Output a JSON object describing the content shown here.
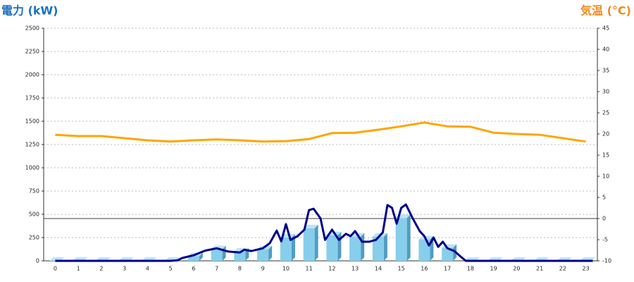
{
  "chart_data": {
    "type": "bar",
    "title": "電力 (kW)",
    "y2_title": "気温 (°C)",
    "categories": [
      "0",
      "1",
      "2",
      "3",
      "4",
      "5",
      "6",
      "7",
      "8",
      "9",
      "10",
      "11",
      "12",
      "13",
      "14",
      "15",
      "16",
      "17",
      "18",
      "19",
      "20",
      "21",
      "22",
      "23"
    ],
    "ylim": [
      0,
      2500
    ],
    "yticks": [
      0,
      250,
      500,
      750,
      1000,
      1250,
      1500,
      1750,
      2000,
      2250,
      2500
    ],
    "y2lim": [
      -10,
      45
    ],
    "y2ticks": [
      -10,
      -5,
      0,
      5,
      10,
      15,
      20,
      25,
      30,
      35,
      40,
      45
    ],
    "grid": true,
    "series": [
      {
        "type": "bar",
        "color": "#87ceeb",
        "values": [
          0,
          0,
          0,
          0,
          0,
          0,
          50,
          125,
          100,
          125,
          250,
          350,
          275,
          260,
          260,
          460,
          230,
          140,
          0,
          0,
          0,
          0,
          0,
          0
        ]
      },
      {
        "type": "line",
        "color": "#00008b",
        "x": [
          0,
          5,
          5.3,
          5.5,
          6,
          6.3,
          6.5,
          7,
          7.5,
          8,
          8.2,
          8.5,
          9,
          9.3,
          9.6,
          9.8,
          10,
          10.2,
          10.5,
          10.8,
          11,
          11.2,
          11.5,
          11.7,
          12,
          12.3,
          12.6,
          12.8,
          13,
          13.3,
          13.6,
          13.9,
          14.2,
          14.4,
          14.6,
          14.8,
          15,
          15.2,
          15.5,
          15.8,
          16,
          16.2,
          16.4,
          16.6,
          16.8,
          17,
          17.3,
          17.6,
          17.8,
          23.3
        ],
        "values": [
          0,
          0,
          5,
          30,
          60,
          90,
          110,
          135,
          100,
          90,
          120,
          105,
          135,
          190,
          325,
          210,
          395,
          225,
          265,
          335,
          545,
          560,
          455,
          225,
          335,
          225,
          290,
          265,
          320,
          205,
          205,
          225,
          305,
          600,
          570,
          400,
          570,
          605,
          455,
          320,
          265,
          165,
          250,
          150,
          205,
          135,
          105,
          40,
          0,
          0
        ]
      },
      {
        "type": "line",
        "color": "#ffa500",
        "axis": "y2",
        "values": [
          19.8,
          19.5,
          19.5,
          19,
          18.5,
          18.2,
          18.5,
          18.7,
          18.5,
          18.2,
          18.3,
          18.8,
          20.2,
          20.3,
          21,
          21.8,
          22.7,
          21.8,
          21.7,
          20.3,
          20,
          19.8,
          19,
          18.2
        ]
      }
    ]
  }
}
